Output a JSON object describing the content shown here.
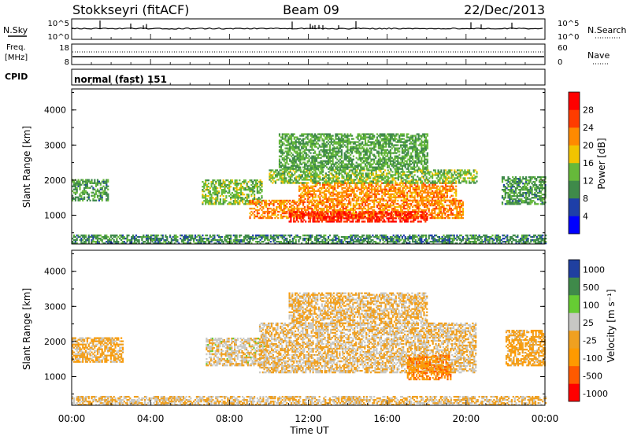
{
  "header": {
    "station": "Stokkseyri (fitACF)",
    "beam": "Beam 09",
    "date": "22/Dec/2013"
  },
  "noise_panel": {
    "left_label": "N.Sky",
    "left_ticks": [
      "10^5",
      "10^0"
    ],
    "right_ticks": [
      "10^5",
      "10^0"
    ],
    "right_label": "N.Search"
  },
  "freq_panel": {
    "left_label_1": "Freq.",
    "left_label_2": "[MHz]",
    "left_ticks": [
      "18",
      "8"
    ],
    "right_ticks": [
      "60",
      "0"
    ],
    "right_label": "Nave"
  },
  "cpid_panel": {
    "left_label": "CPID",
    "mode_text": "normal (fast) 151"
  },
  "colors": {
    "power_scale": [
      "#0000ff",
      "#1e3fa8",
      "#3f8a4a",
      "#66b93a",
      "#f2c400",
      "#ff8a00",
      "#ff3c00",
      "#ff0000"
    ],
    "velocity_scale": [
      "#ff0000",
      "#ff5a00",
      "#ff9a00",
      "#f0a020",
      "#c8c8c4",
      "#66cc33",
      "#3f8a4a",
      "#2040a0"
    ]
  },
  "chart_data": [
    {
      "type": "heatmap",
      "panel": "power",
      "ylabel": "Slant Range [km]",
      "yticks": [
        "1000",
        "2000",
        "3000",
        "4000"
      ],
      "xlim": [
        0,
        24
      ],
      "ylim": [
        180,
        4600
      ],
      "colorbar_label": "Power [dB]",
      "colorbar_ticks": [
        "4",
        "8",
        "12",
        "16",
        "20",
        "24",
        "28"
      ],
      "clim": [
        0,
        32
      ],
      "regions": [
        {
          "t0": 0.0,
          "t1": 1.8,
          "r0": 1400,
          "r1": 2000,
          "v": 11
        },
        {
          "t0": 6.6,
          "t1": 9.6,
          "r0": 1300,
          "r1": 2000,
          "v": 14
        },
        {
          "t0": 9.0,
          "t1": 19.8,
          "r0": 900,
          "r1": 1400,
          "v": 22
        },
        {
          "t0": 11.0,
          "t1": 18.0,
          "r0": 800,
          "r1": 1100,
          "v": 28
        },
        {
          "t0": 11.5,
          "t1": 19.5,
          "r0": 1400,
          "r1": 1900,
          "v": 22
        },
        {
          "t0": 10.0,
          "t1": 20.5,
          "r0": 1900,
          "r1": 2300,
          "v": 14
        },
        {
          "t0": 10.5,
          "t1": 18.0,
          "r0": 2300,
          "r1": 3300,
          "v": 12
        },
        {
          "t0": 21.8,
          "t1": 24.0,
          "r0": 1300,
          "r1": 2100,
          "v": 11
        },
        {
          "t0": 0.0,
          "t1": 24.0,
          "r0": 180,
          "r1": 450,
          "v": 10
        }
      ]
    },
    {
      "type": "heatmap",
      "panel": "velocity",
      "ylabel": "Slant Range [km]",
      "yticks": [
        "1000",
        "2000",
        "3000",
        "4000"
      ],
      "xlabel": "Time UT",
      "xticks": [
        "00:00",
        "04:00",
        "08:00",
        "12:00",
        "16:00",
        "20:00",
        "00:00"
      ],
      "xlim": [
        0,
        24
      ],
      "ylim": [
        180,
        4600
      ],
      "colorbar_label": "Velocity [m s⁻¹]",
      "colorbar_ticks": [
        "1000",
        "500",
        "100",
        "25",
        "-25",
        "-100",
        "-500",
        "-1000"
      ],
      "clim": [
        -1200,
        1200
      ],
      "regions": [
        {
          "t0": 0.0,
          "t1": 2.6,
          "r0": 1400,
          "r1": 2100,
          "v": -150
        },
        {
          "t0": 6.8,
          "t1": 9.8,
          "r0": 1300,
          "r1": 2100,
          "v": 60
        },
        {
          "t0": 9.5,
          "t1": 20.5,
          "r0": 1100,
          "r1": 2500,
          "v": 0
        },
        {
          "t0": 17.0,
          "t1": 19.2,
          "r0": 900,
          "r1": 1600,
          "v": -500
        },
        {
          "t0": 11.0,
          "t1": 18.0,
          "r0": 2500,
          "r1": 3400,
          "v": -60
        },
        {
          "t0": 22.0,
          "t1": 24.0,
          "r0": 1300,
          "r1": 2300,
          "v": -200
        },
        {
          "t0": 0.0,
          "t1": 24.0,
          "r0": 180,
          "r1": 450,
          "v": -30
        }
      ]
    }
  ]
}
